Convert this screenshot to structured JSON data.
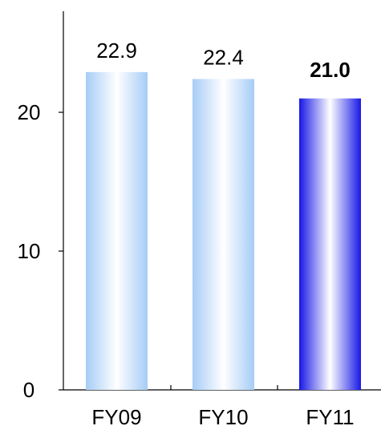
{
  "chart_data": {
    "type": "bar",
    "categories": [
      "FY09",
      "FY10",
      "FY11"
    ],
    "values": [
      22.9,
      22.4,
      21.0
    ],
    "data_labels": [
      "22.9",
      "22.4",
      "21.0"
    ],
    "highlight_index": 2,
    "y_ticks": [
      {
        "value": 0,
        "label": "0"
      },
      {
        "value": 10,
        "label": "10"
      },
      {
        "value": 20,
        "label": "20"
      }
    ],
    "ylim": [
      0,
      28
    ],
    "grid": false,
    "title": "",
    "xlabel": "",
    "ylabel": "",
    "colors": {
      "bar_edge": "#a6ccf6",
      "bar_center": "#ffffff",
      "highlight_edge": "#1818e6",
      "highlight_center": "#ffffff",
      "axis": "#000000",
      "text": "#000000"
    }
  }
}
